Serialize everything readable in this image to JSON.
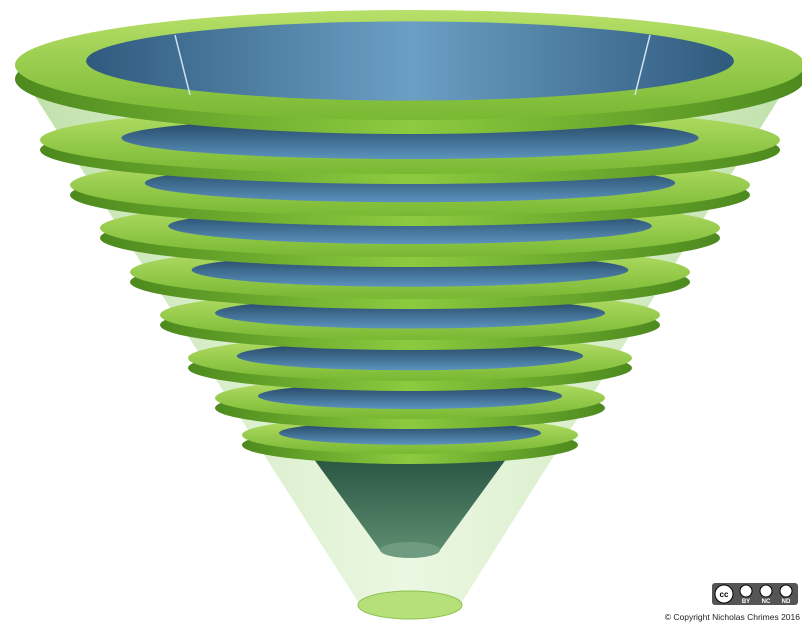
{
  "license_badge": {
    "icon": "cc",
    "terms": [
      "BY",
      "NC",
      "ND"
    ]
  },
  "copyright": "© Copyright Nicholas Chrimes 2016"
}
